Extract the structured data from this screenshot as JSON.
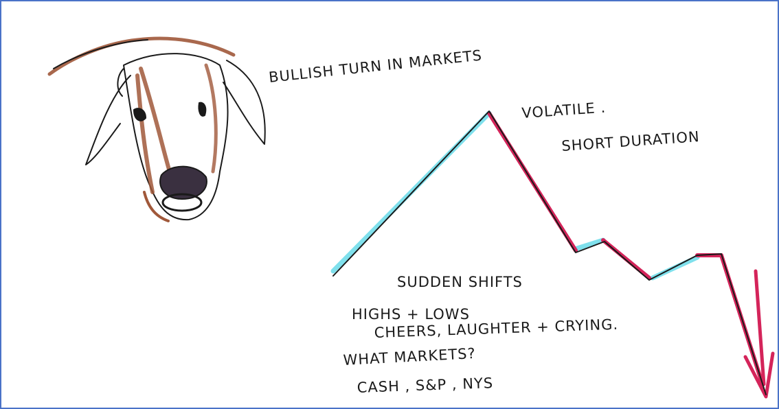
{
  "notes": [
    "BULLISH TURN IN MARKETS",
    "VOLATILE .",
    "SHORT DURATION",
    "SUDDEN SHIFTS",
    "HIGHS + LOWS",
    "CHEERS, LAUGHTER + CRYING.",
    "WHAT MARKETS?",
    "CASH , S&P , NYS"
  ]
}
